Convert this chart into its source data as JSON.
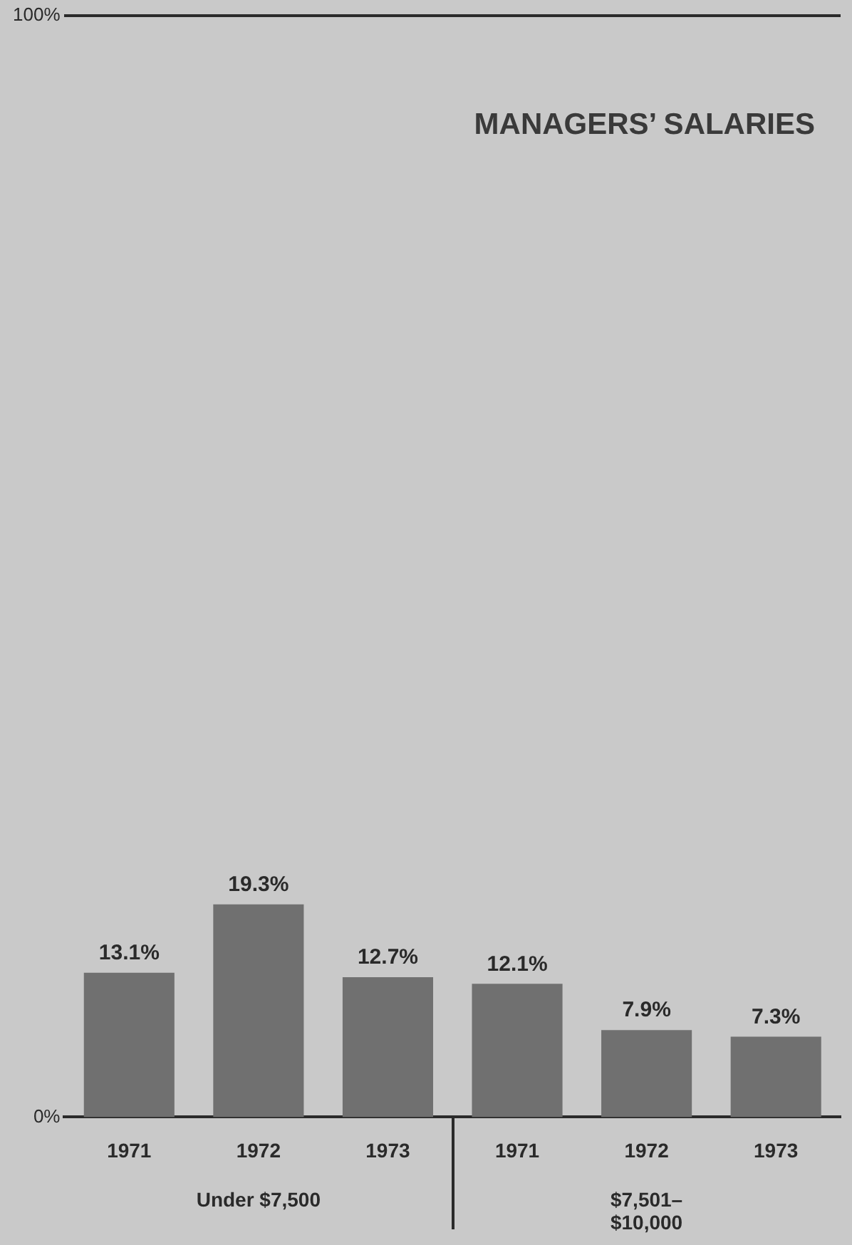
{
  "chart_data": {
    "type": "bar",
    "title": "MANAGERS’ SALARIES",
    "categories": [
      "1971",
      "1972",
      "1973",
      "1971",
      "1972",
      "1973"
    ],
    "values": [
      13.1,
      19.3,
      12.7,
      12.1,
      7.9,
      7.3
    ],
    "value_labels": [
      "13.1%",
      "19.3%",
      "12.7%",
      "12.1%",
      "7.9%",
      "7.3%"
    ],
    "color": "#707070",
    "ylim": [
      0,
      100
    ],
    "yticks": [
      {
        "value": 0,
        "label": "0%"
      },
      {
        "value": 100,
        "label": "100%"
      }
    ],
    "annotations": [
      "Under $7,500",
      "$7,501–\n$10,000"
    ]
  }
}
